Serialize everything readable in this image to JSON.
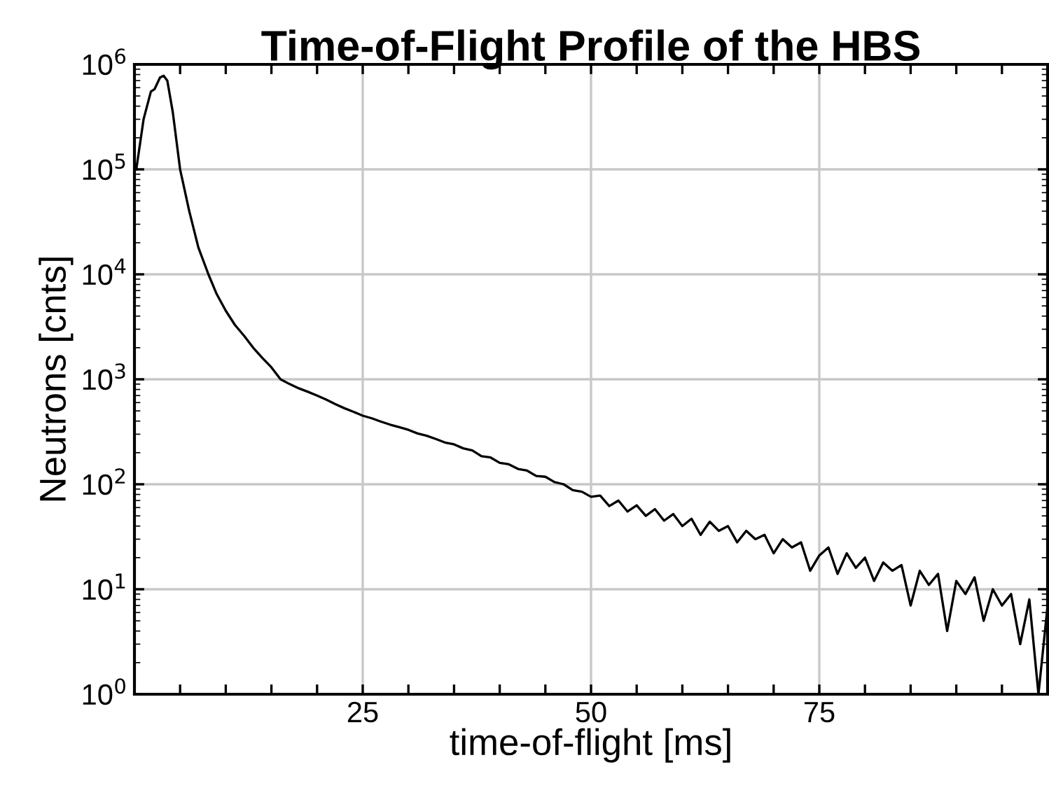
{
  "chart_data": {
    "type": "line",
    "title": "Time-of-Flight Profile of the HBS",
    "xlabel": "time-of-flight [ms]",
    "ylabel": "Neutrons [cnts]",
    "log": "y",
    "grid": true,
    "marker": "none",
    "line_style": "solid",
    "xlim": [
      0,
      100
    ],
    "ylim": [
      1,
      1000000
    ],
    "xticks": [
      {
        "value": 5,
        "label": null
      },
      {
        "value": 10,
        "label": null
      },
      {
        "value": 15,
        "label": null
      },
      {
        "value": 20,
        "label": null
      },
      25,
      {
        "value": 30,
        "label": null
      },
      {
        "value": 35,
        "label": null
      },
      {
        "value": 40,
        "label": null
      },
      {
        "value": 45,
        "label": null
      },
      50,
      {
        "value": 55,
        "label": null
      },
      {
        "value": 60,
        "label": null
      },
      {
        "value": 65,
        "label": null
      },
      {
        "value": 70,
        "label": null
      },
      75,
      {
        "value": 80,
        "label": null
      },
      {
        "value": 85,
        "label": null
      },
      {
        "value": 90,
        "label": null
      },
      {
        "value": 95,
        "label": null
      }
    ],
    "yticks": [
      {
        "value": 1,
        "label": "10$^{0}$"
      },
      {
        "value": 10,
        "label": "10$^{1}$"
      },
      {
        "value": 100,
        "label": "10$^{2}$"
      },
      {
        "value": 1000,
        "label": "10$^{3}$"
      },
      {
        "value": 10000,
        "label": "10$^{4}$"
      },
      {
        "value": 100000,
        "label": "10$^{5}$"
      },
      {
        "value": 1000000,
        "label": "10$^{6}$"
      }
    ],
    "series": [
      {
        "color": "#000000",
        "x": [
          0.2,
          1.0,
          1.8,
          2.2,
          2.8,
          3.2,
          3.6,
          4.2,
          5.0,
          6.0,
          7.0,
          8.1,
          9,
          10,
          11,
          12,
          13,
          14,
          15,
          16,
          17,
          18,
          19,
          20,
          21,
          22,
          23,
          24,
          25,
          26,
          27,
          28,
          29,
          30,
          31,
          32,
          33,
          34,
          35,
          36,
          37,
          38,
          39,
          40,
          41,
          42,
          43,
          44,
          45,
          46,
          47,
          48,
          49,
          50,
          51,
          52,
          53,
          54,
          55,
          56,
          57,
          58,
          59,
          60,
          61,
          62,
          63,
          64,
          65,
          66,
          67,
          68,
          69,
          70,
          71,
          72,
          73,
          74,
          75,
          76,
          77,
          78,
          79,
          80,
          81,
          82,
          83,
          84,
          85,
          86,
          87,
          88,
          89,
          90,
          91,
          92,
          93,
          94,
          95,
          96,
          97,
          98,
          99,
          100
        ],
        "values": [
          100000,
          300000,
          550000,
          580000,
          750000,
          780000,
          700000,
          350000,
          100000,
          40000,
          18000,
          10000,
          6500,
          4500,
          3300,
          2600,
          2000,
          1600,
          1300,
          1000,
          900,
          820,
          760,
          700,
          640,
          580,
          530,
          490,
          450,
          425,
          395,
          370,
          350,
          330,
          305,
          290,
          270,
          250,
          240,
          220,
          210,
          185,
          180,
          160,
          155,
          140,
          135,
          120,
          118,
          105,
          100,
          88,
          85,
          76,
          78,
          62,
          70,
          55,
          63,
          50,
          58,
          45,
          52,
          40,
          47,
          33,
          44,
          36,
          40,
          28,
          36,
          30,
          33,
          22,
          30,
          25,
          28,
          15,
          21,
          25,
          14,
          22,
          16,
          20,
          12,
          18,
          15,
          17,
          7,
          15,
          11,
          14,
          4,
          12,
          9,
          13,
          5,
          10,
          7,
          9,
          3,
          8,
          1,
          7
        ]
      }
    ]
  }
}
